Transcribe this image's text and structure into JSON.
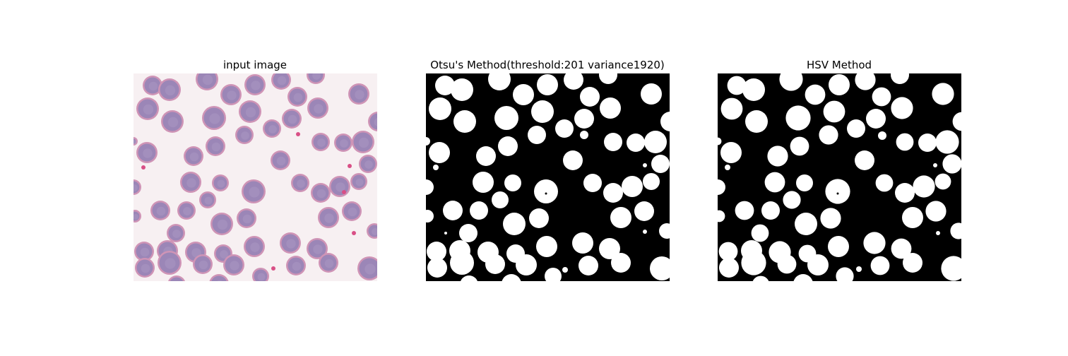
{
  "panels": [
    {
      "title": "input image",
      "kind": "microscopy",
      "background": "#f7f0f2",
      "cell_fill": "#9b86b7",
      "cell_rim": "#cf94b6",
      "platelet": "#d94f86"
    },
    {
      "title": "Otsu's Method(threshold:201 variance1920)",
      "kind": "mask",
      "background": "#000000",
      "cell_fill": "#ffffff"
    },
    {
      "title": "HSV Method",
      "kind": "mask",
      "background": "#000000",
      "cell_fill": "#ffffff"
    }
  ]
}
